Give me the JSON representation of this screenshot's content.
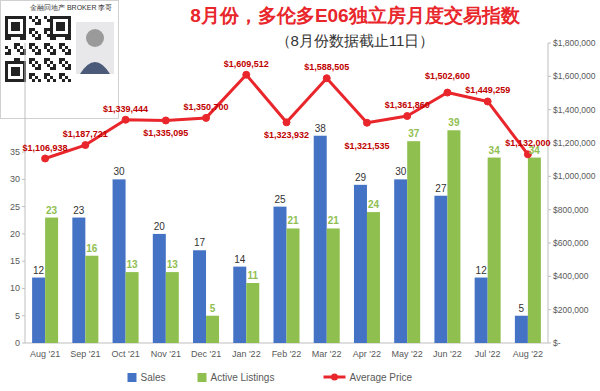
{
  "chart_data": {
    "type": "bar",
    "title": "8月份，多伦多E06独立房月度交易指数",
    "subtitle": "（8月份数据截止11日）",
    "annotations": [
      "金融回地产 BROKER 李哥"
    ],
    "categories": [
      "Aug '21",
      "Sep '21",
      "Oct '21",
      "Nov '21",
      "Dec '21",
      "Jan '22",
      "Feb '22",
      "Mar '22",
      "Apr '22",
      "May '22",
      "Jun '22",
      "Jul '22",
      "Aug '22"
    ],
    "series": [
      {
        "name": "Sales",
        "type": "bar",
        "color": "#4472c4",
        "values": [
          12,
          23,
          30,
          20,
          17,
          14,
          25,
          38,
          29,
          30,
          27,
          12,
          5
        ]
      },
      {
        "name": "Active Listings",
        "type": "bar",
        "color": "#8fc04f",
        "values": [
          23,
          16,
          13,
          13,
          5,
          11,
          21,
          21,
          24,
          37,
          39,
          34,
          34
        ]
      },
      {
        "name": "Average Price",
        "type": "line",
        "color": "#e8262b",
        "marker": "circle",
        "axis": "y2",
        "values": [
          1106938,
          1187721,
          1339444,
          1335095,
          1350700,
          1609512,
          1323932,
          1588505,
          1321535,
          1361860,
          1502600,
          1449259,
          1132000
        ],
        "value_labels": [
          "$1,106,938",
          "$1,187,721",
          "$1,339,444",
          "$1,335,095",
          "$1,350,700",
          "$1,609,512",
          "$1,323,932",
          "$1,588,505",
          "$1,321,535",
          "$1,361,860",
          "$1,502,600",
          "$1,449,259",
          "$1,132,000"
        ]
      }
    ],
    "ylim": [
      0,
      55
    ],
    "yticks": [
      0,
      5,
      10,
      15,
      20,
      25,
      30,
      35
    ],
    "y2lim": [
      0,
      1800000
    ],
    "y2ticks": [
      {
        "value": 0,
        "label": "$-"
      },
      {
        "value": 200000,
        "label": "$200,000"
      },
      {
        "value": 400000,
        "label": "$400,000"
      },
      {
        "value": 600000,
        "label": "$600,000"
      },
      {
        "value": 800000,
        "label": "$800,000"
      },
      {
        "value": 1000000,
        "label": "$1,000,000"
      },
      {
        "value": 1200000,
        "label": "$1,200,000"
      },
      {
        "value": 1400000,
        "label": "$1,400,000"
      },
      {
        "value": 1600000,
        "label": "$1,600,000"
      },
      {
        "value": 1800000,
        "label": "$1,800,000"
      }
    ],
    "data_labels": true,
    "legend": "bottom",
    "grid": false
  }
}
